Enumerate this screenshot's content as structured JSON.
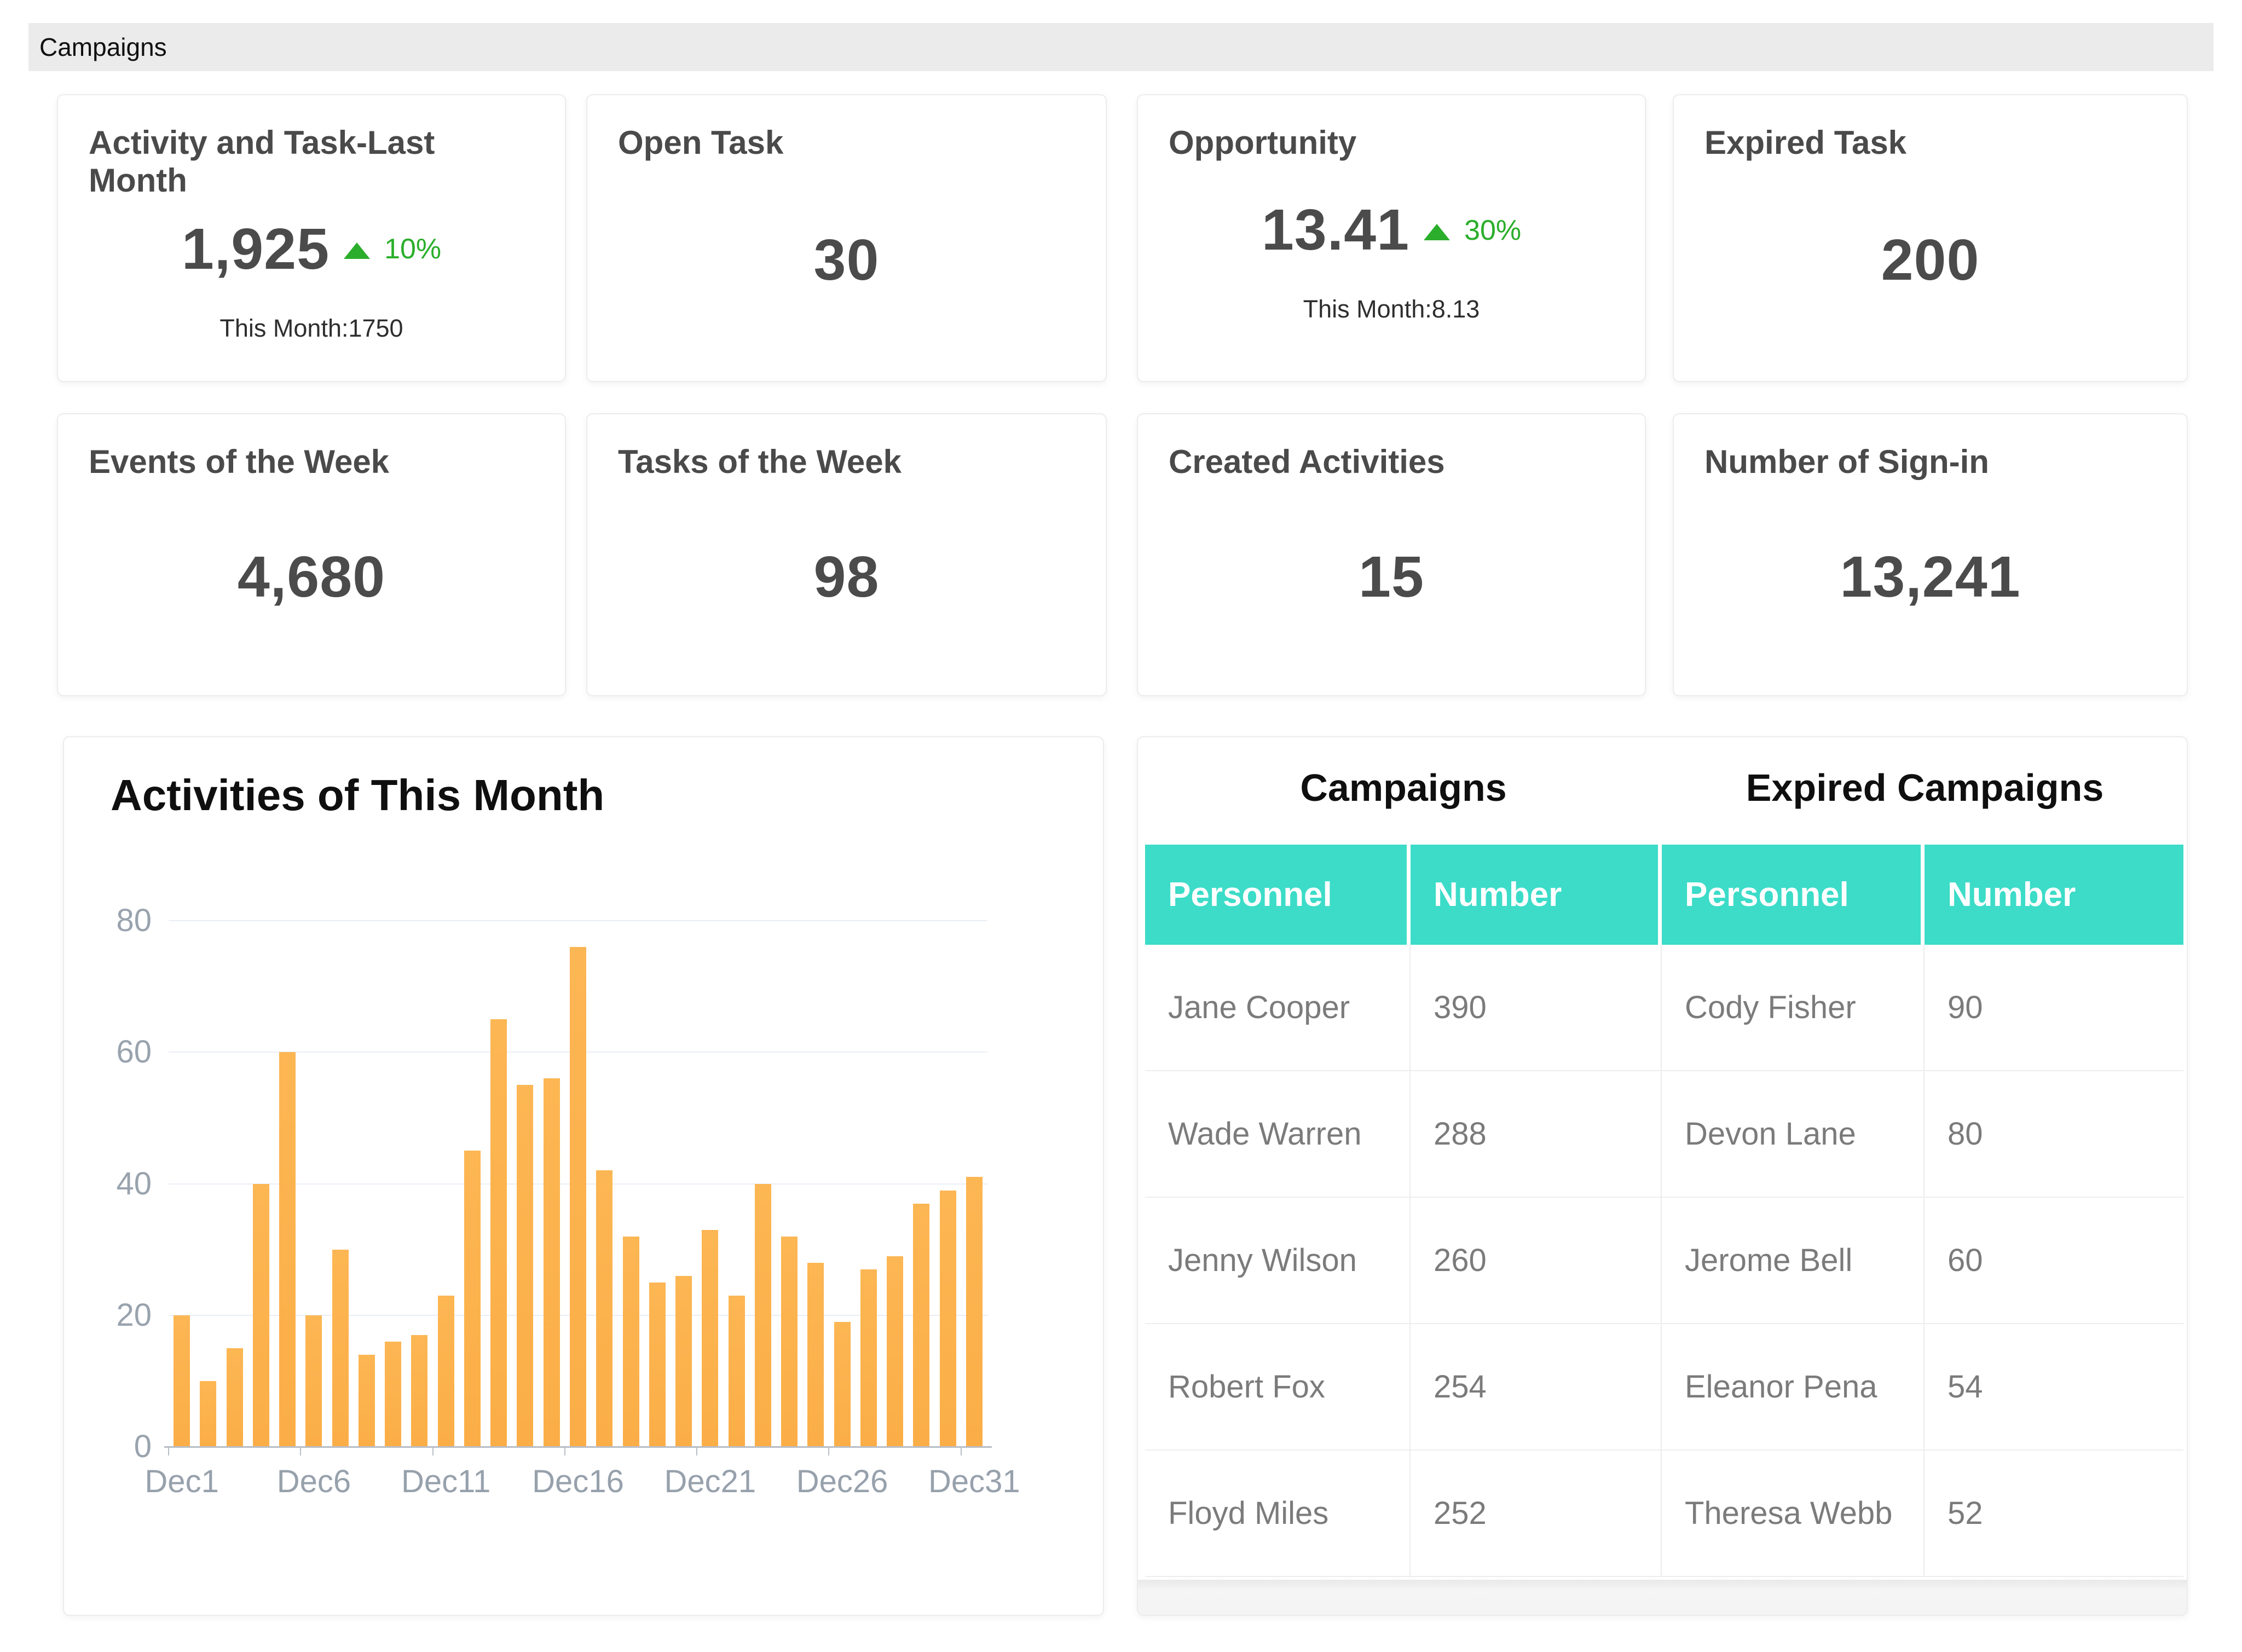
{
  "page": {
    "title": "Campaigns"
  },
  "colors": {
    "topbar_bg": "#ebebeb",
    "accent_teal": "#3cdcc8",
    "bar_orange": "#fbae47",
    "trend_green": "#2bae2b"
  },
  "kpi_cards": [
    {
      "title": "Activity and Task-Last Month",
      "value": "1,925",
      "trend_dir": "up",
      "trend": "10%",
      "subtext": "This Month:1750"
    },
    {
      "title": "Open Task",
      "value": "30"
    },
    {
      "title": "Opportunity",
      "value": "13.41",
      "trend_dir": "up",
      "trend": "30%",
      "subtext": "This Month:8.13"
    },
    {
      "title": "Expired Task",
      "value": "200"
    },
    {
      "title": "Events of the Week",
      "value": "4,680"
    },
    {
      "title": "Tasks of the Week",
      "value": "98"
    },
    {
      "title": "Created Activities",
      "value": "15"
    },
    {
      "title": "Number of Sign-in",
      "value": "13,241"
    }
  ],
  "chart_data": {
    "type": "bar",
    "title": "Activities of This Month",
    "xlabel": "",
    "ylabel": "",
    "categories": [
      "Dec1",
      "Dec2",
      "Dec3",
      "Dec4",
      "Dec5",
      "Dec6",
      "Dec7",
      "Dec8",
      "Dec9",
      "Dec10",
      "Dec11",
      "Dec12",
      "Dec13",
      "Dec14",
      "Dec15",
      "Dec16",
      "Dec17",
      "Dec18",
      "Dec19",
      "Dec20",
      "Dec21",
      "Dec22",
      "Dec23",
      "Dec24",
      "Dec25",
      "Dec26",
      "Dec27",
      "Dec28",
      "Dec29",
      "Dec30",
      "Dec31"
    ],
    "values": [
      20,
      10,
      15,
      40,
      60,
      20,
      30,
      14,
      16,
      17,
      23,
      45,
      65,
      55,
      56,
      76,
      42,
      32,
      25,
      26,
      33,
      23,
      40,
      32,
      28,
      19,
      27,
      29,
      37,
      39,
      41
    ],
    "visible_x_ticks": [
      "Dec1",
      "Dec6",
      "Dec11",
      "Dec16",
      "Dec21",
      "Dec26",
      "Dec31"
    ],
    "y_ticks": [
      0,
      20,
      40,
      60,
      80
    ],
    "ylim": [
      0,
      80
    ],
    "grid": true,
    "legend": false,
    "bar_color": "#fbae47"
  },
  "tables": {
    "left": {
      "title": "Campaigns",
      "columns": [
        "Personnel",
        "Number"
      ],
      "rows": [
        [
          "Jane Cooper",
          "390"
        ],
        [
          "Wade Warren",
          "288"
        ],
        [
          "Jenny Wilson",
          "260"
        ],
        [
          "Robert Fox",
          "254"
        ],
        [
          "Floyd Miles",
          "252"
        ]
      ]
    },
    "right": {
      "title": "Expired Campaigns",
      "columns": [
        "Personnel",
        "Number"
      ],
      "rows": [
        [
          "Cody Fisher",
          "90"
        ],
        [
          "Devon Lane",
          "80"
        ],
        [
          "Jerome Bell",
          "60"
        ],
        [
          "Eleanor Pena",
          "54"
        ],
        [
          "Theresa Webb",
          "52"
        ]
      ]
    }
  }
}
